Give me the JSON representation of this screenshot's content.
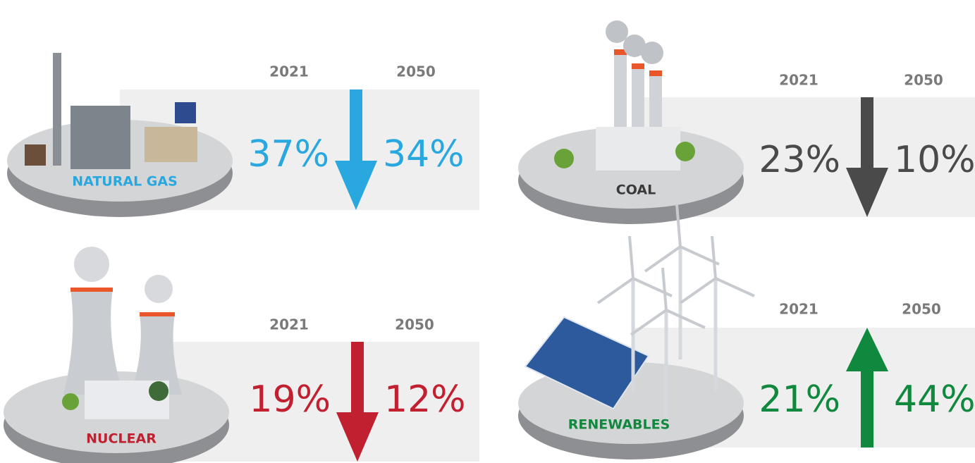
{
  "panels": [
    {
      "label": "NATURAL GAS",
      "year_from": "2021",
      "year_to": "2050",
      "value_from": "37%",
      "value_to": "34%",
      "color": "#29a8e0",
      "direction": "down"
    },
    {
      "label": "COAL",
      "year_from": "2021",
      "year_to": "2050",
      "value_from": "23%",
      "value_to": "10%",
      "color": "#4a4a4a",
      "label_color": "#3a3a3a",
      "direction": "down"
    },
    {
      "label": "NUCLEAR",
      "year_from": "2021",
      "year_to": "2050",
      "value_from": "19%",
      "value_to": "12%",
      "color": "#c0202f",
      "direction": "down"
    },
    {
      "label": "RENEWABLES",
      "year_from": "2021",
      "year_to": "2050",
      "value_from": "21%",
      "value_to": "44%",
      "color": "#10893e",
      "direction": "up"
    }
  ]
}
